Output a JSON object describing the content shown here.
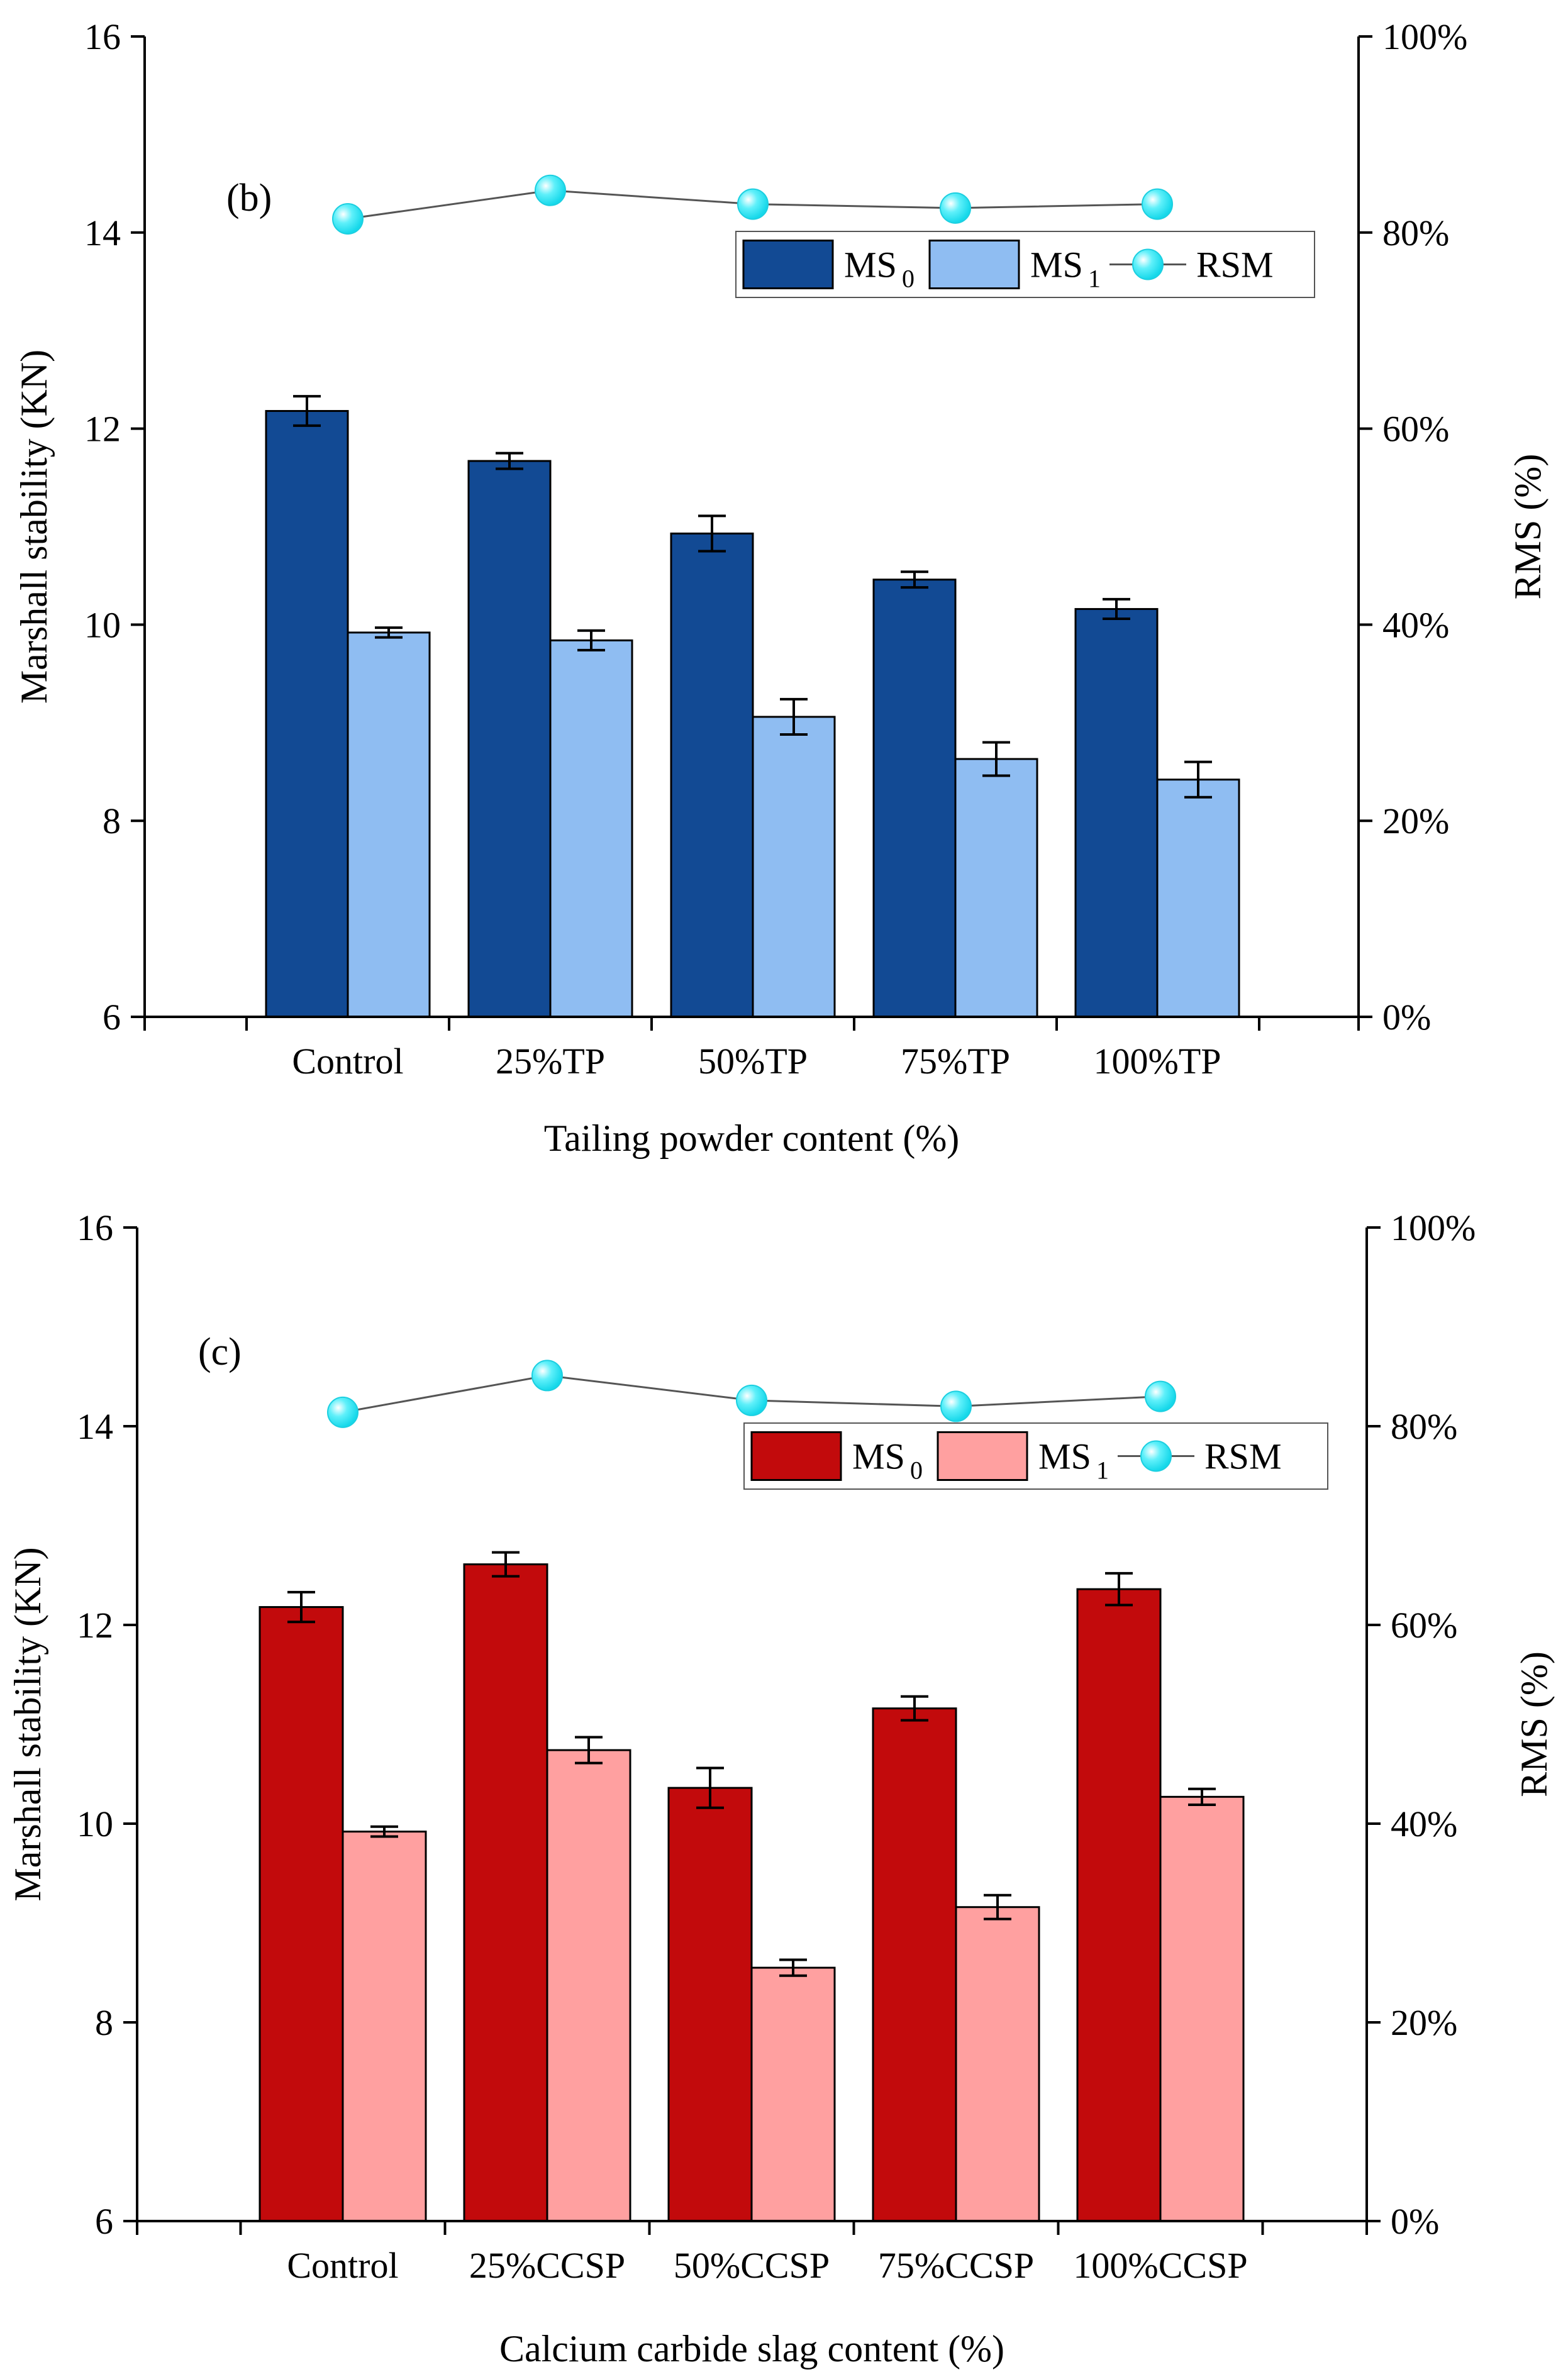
{
  "chart_data": [
    {
      "panel": "(b)",
      "type": "bar",
      "categories": [
        "Control",
        "25%TP",
        "50%TP",
        "75%TP",
        "100%TP"
      ],
      "xlabel": "Tailing  powder content (%)",
      "ylabel": "Marshall stability (KN)",
      "y2label": "RMS (%)",
      "ylim": [
        6,
        16
      ],
      "yticks": [
        "6",
        "8",
        "10",
        "12",
        "14",
        "16"
      ],
      "y2lim": [
        0,
        100
      ],
      "y2ticks": [
        "0%",
        "20%",
        "40%",
        "60%",
        "80%",
        "100%"
      ],
      "legend_position": "top-right",
      "grid": false,
      "series": [
        {
          "name": "MS",
          "subscript": "0",
          "kind": "bar",
          "color": "#124a94",
          "values": [
            12.18,
            11.67,
            10.93,
            10.46,
            10.16
          ],
          "errors": [
            0.15,
            0.08,
            0.18,
            0.08,
            0.1
          ]
        },
        {
          "name": "MS",
          "subscript": "1",
          "kind": "bar",
          "color": "#8fbdf2",
          "values": [
            9.92,
            9.84,
            9.06,
            8.63,
            8.42
          ],
          "errors": [
            0.05,
            0.1,
            0.18,
            0.17,
            0.18
          ]
        },
        {
          "name": "RSM",
          "kind": "line",
          "axis": "right",
          "color": "#22e4f2",
          "values": [
            81.4,
            84.3,
            82.9,
            82.5,
            82.9
          ]
        }
      ]
    },
    {
      "panel": "(c)",
      "type": "bar",
      "categories": [
        "Control",
        "25%CCSP",
        "50%CCSP",
        "75%CCSP",
        "100%CCSP"
      ],
      "xlabel": "Calcium carbide slag content (%)",
      "ylabel": "Marshall stability (KN)",
      "y2label": "RMS (%)",
      "ylim": [
        6,
        16
      ],
      "yticks": [
        "6",
        "8",
        "10",
        "12",
        "14",
        "16"
      ],
      "y2lim": [
        0,
        100
      ],
      "y2ticks": [
        "0%",
        "20%",
        "40%",
        "60%",
        "80%",
        "100%"
      ],
      "legend_position": "top-right",
      "grid": false,
      "series": [
        {
          "name": "MS",
          "subscript": "0",
          "kind": "bar",
          "color": "#c20a0c",
          "values": [
            12.18,
            12.61,
            10.36,
            11.16,
            12.36
          ],
          "errors": [
            0.15,
            0.12,
            0.2,
            0.12,
            0.16
          ]
        },
        {
          "name": "MS",
          "subscript": "1",
          "kind": "bar",
          "color": "#ffa0a0",
          "values": [
            9.92,
            10.74,
            8.55,
            9.16,
            10.27
          ],
          "errors": [
            0.05,
            0.13,
            0.08,
            0.12,
            0.08
          ]
        },
        {
          "name": "RSM",
          "kind": "line",
          "axis": "right",
          "color": "#22e4f2",
          "values": [
            81.4,
            85.1,
            82.6,
            82.0,
            83.0
          ]
        }
      ]
    }
  ]
}
